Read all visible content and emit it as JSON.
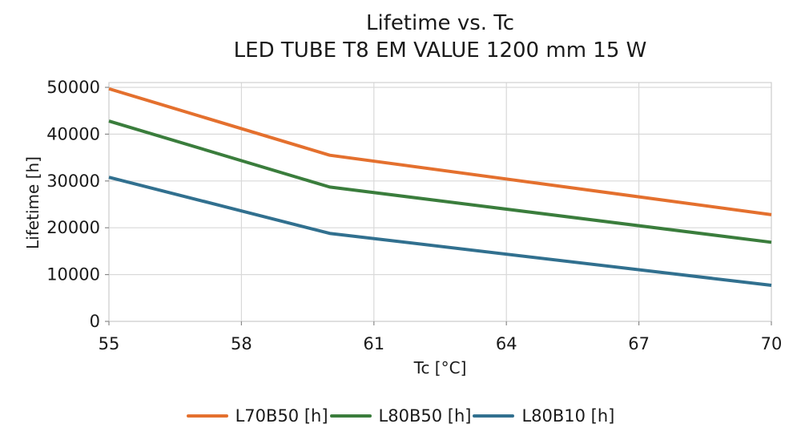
{
  "chart_data": {
    "type": "line",
    "title": "Lifetime vs. Tc",
    "subtitle": "LED TUBE T8 EM VALUE 1200 mm 15 W",
    "xlabel": "Tc [°C]",
    "ylabel": "Lifetime [h]",
    "xlim": [
      55,
      70
    ],
    "ylim": [
      0,
      50000
    ],
    "xticks": [
      55,
      58,
      61,
      64,
      67,
      70
    ],
    "yticks": [
      0,
      10000,
      20000,
      30000,
      40000,
      50000
    ],
    "grid": true,
    "legend_position": "bottom",
    "x": [
      55,
      60,
      70
    ],
    "series": [
      {
        "name": "L70B50 [h]",
        "color": "#E4702E",
        "values": [
          49700,
          35500,
          22800
        ]
      },
      {
        "name": "L80B50 [h]",
        "color": "#3A7D3C",
        "values": [
          42800,
          28700,
          16900
        ]
      },
      {
        "name": "L80B10 [h]",
        "color": "#31708F",
        "values": [
          30800,
          18800,
          7700
        ]
      }
    ],
    "colors": {
      "grid": "#d9d9d9",
      "frame": "#d0d0d0",
      "tick_mark": "#8a8a8a",
      "text": "#1a1a1a"
    }
  }
}
